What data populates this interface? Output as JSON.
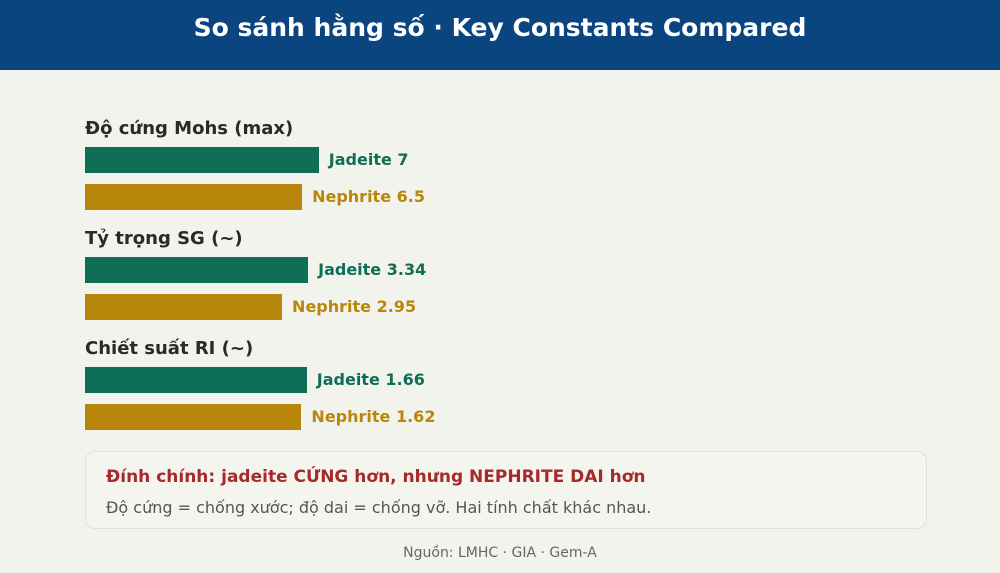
{
  "header": {
    "title": "So sánh hằng số · Key Constants Compared"
  },
  "chart_data": [
    {
      "type": "bar",
      "title": "Độ cứng Mohs (max)",
      "categories": [
        "Jadeite",
        "Nephrite"
      ],
      "values": [
        7,
        6.5
      ],
      "colors": [
        "#0f6e56",
        "#b8860b"
      ],
      "xlim": [
        0,
        10
      ]
    },
    {
      "type": "bar",
      "title": "Tỷ trọng SG (~)",
      "categories": [
        "Jadeite",
        "Nephrite"
      ],
      "values": [
        3.34,
        2.95
      ],
      "colors": [
        "#0f6e56",
        "#b8860b"
      ],
      "xlim": [
        0,
        5
      ]
    },
    {
      "type": "bar",
      "title": "Chiết suất RI (~)",
      "categories": [
        "Jadeite",
        "Nephrite"
      ],
      "values": [
        1.66,
        1.62
      ],
      "colors": [
        "#0f6e56",
        "#b8860b"
      ],
      "xlim": [
        0,
        2.5
      ]
    }
  ],
  "note": {
    "title": "Đính chính: jadeite CỨNG hơn, nhưng NEPHRITE DAI hơn",
    "text": "Độ cứng = chống xước; độ dai = chống vỡ. Hai tính chất khác nhau."
  },
  "source": "Nguồn: LMHC · GIA · Gem-A"
}
